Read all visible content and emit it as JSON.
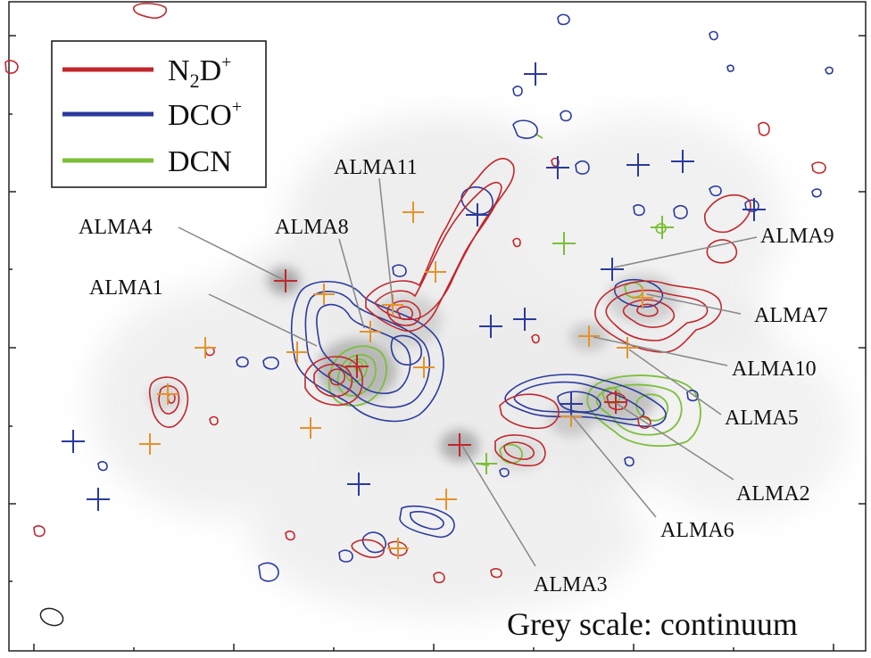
{
  "legend": {
    "items": [
      {
        "species_main": "N",
        "species_sub": "2",
        "species_rest": "D",
        "species_sup": "+",
        "color": "#c1272d"
      },
      {
        "species_main": "DCO",
        "species_sub": "",
        "species_rest": "",
        "species_sup": "+",
        "color": "#2b3a9e"
      },
      {
        "species_main": "DCN",
        "species_sub": "",
        "species_rest": "",
        "species_sup": "",
        "color": "#7cbf3a"
      }
    ]
  },
  "sources": {
    "alma1": "ALMA1",
    "alma2": "ALMA2",
    "alma3": "ALMA3",
    "alma4": "ALMA4",
    "alma5": "ALMA5",
    "alma6": "ALMA6",
    "alma7": "ALMA7",
    "alma8": "ALMA8",
    "alma9": "ALMA9",
    "alma10": "ALMA10",
    "alma11": "ALMA11"
  },
  "footer": {
    "caption": "Grey scale: continuum"
  },
  "colors": {
    "n2dp": "#c1272d",
    "dcop": "#2b3a9e",
    "dcn": "#7cbf3a",
    "marker_orange": "#e8922a",
    "leader": "#888888"
  }
}
